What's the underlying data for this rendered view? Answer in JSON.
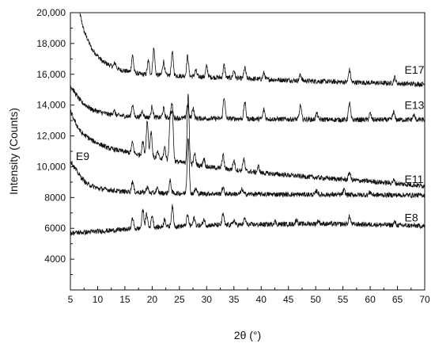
{
  "chart_data": {
    "type": "line",
    "title": "",
    "xlabel": "2θ (°)",
    "ylabel": "Intensity (Counts)",
    "xlim": [
      5,
      70
    ],
    "ylim": [
      2000,
      20000
    ],
    "x_ticks": [
      5,
      10,
      15,
      20,
      25,
      30,
      35,
      40,
      45,
      50,
      55,
      60,
      65,
      70
    ],
    "y_ticks": [
      {
        "value": 4000,
        "label": "4000"
      },
      {
        "value": 6000,
        "label": "6000"
      },
      {
        "value": 8000,
        "label": "8000"
      },
      {
        "value": 10000,
        "label": "10,000"
      },
      {
        "value": 12000,
        "label": "12,000"
      },
      {
        "value": 14000,
        "label": "14,000"
      },
      {
        "value": 16000,
        "label": "16,000"
      },
      {
        "value": 18000,
        "label": "18,000"
      },
      {
        "value": 20000,
        "label": "20,000"
      }
    ],
    "grid": false,
    "series": [
      {
        "name": "E17",
        "label_at": [
          66.3,
          16300
        ],
        "baseline": [
          [
            6.5,
            20300
          ],
          [
            7.5,
            18800
          ],
          [
            9,
            17600
          ],
          [
            11,
            16800
          ],
          [
            14,
            16300
          ],
          [
            18,
            16000
          ],
          [
            25,
            15900
          ],
          [
            35,
            15750
          ],
          [
            50,
            15550
          ],
          [
            60,
            15450
          ],
          [
            70,
            15350
          ]
        ],
        "peaks": [
          [
            13.2,
            300
          ],
          [
            16.4,
            1100
          ],
          [
            19.3,
            900
          ],
          [
            20.3,
            1700
          ],
          [
            22.1,
            900
          ],
          [
            23.7,
            1500
          ],
          [
            26.5,
            1300
          ],
          [
            28.0,
            400
          ],
          [
            30.0,
            700
          ],
          [
            33.2,
            800
          ],
          [
            35.0,
            500
          ],
          [
            37.0,
            700
          ],
          [
            40.5,
            400
          ],
          [
            47.2,
            400
          ],
          [
            56.2,
            800
          ],
          [
            64.5,
            400
          ]
        ]
      },
      {
        "name": "E13",
        "label_at": [
          66.3,
          14000
        ],
        "baseline": [
          [
            5,
            15300
          ],
          [
            6,
            14700
          ],
          [
            7,
            14200
          ],
          [
            9,
            13700
          ],
          [
            12,
            13400
          ],
          [
            16,
            13250
          ],
          [
            25,
            13150
          ],
          [
            40,
            13100
          ],
          [
            55,
            13050
          ],
          [
            70,
            13050
          ]
        ],
        "peaks": [
          [
            13.0,
            300
          ],
          [
            16.4,
            800
          ],
          [
            18.2,
            400
          ],
          [
            20.0,
            700
          ],
          [
            22.1,
            600
          ],
          [
            23.6,
            900
          ],
          [
            26.5,
            900
          ],
          [
            27.5,
            700
          ],
          [
            33.2,
            1400
          ],
          [
            37.0,
            1100
          ],
          [
            40.5,
            600
          ],
          [
            47.2,
            900
          ],
          [
            50.2,
            400
          ],
          [
            56.2,
            1100
          ],
          [
            60.0,
            400
          ],
          [
            64.3,
            500
          ],
          [
            68.0,
            300
          ]
        ]
      },
      {
        "name": "E11",
        "label_at": [
          66.3,
          9200
        ],
        "baseline": [
          [
            5,
            13600
          ],
          [
            6,
            12800
          ],
          [
            7,
            12200
          ],
          [
            9,
            11700
          ],
          [
            12,
            11200
          ],
          [
            16,
            10900
          ],
          [
            20,
            10600
          ],
          [
            30,
            10000
          ],
          [
            40,
            9600
          ],
          [
            50,
            9300
          ],
          [
            60,
            9050
          ],
          [
            70,
            8750
          ]
        ],
        "peaks": [
          [
            16.4,
            700
          ],
          [
            18.3,
            900
          ],
          [
            19.1,
            2300
          ],
          [
            19.8,
            1700
          ],
          [
            21.0,
            400
          ],
          [
            22.3,
            800
          ],
          [
            23.3,
            2700
          ],
          [
            23.7,
            3000
          ],
          [
            26.6,
            4400
          ],
          [
            27.8,
            700
          ],
          [
            29.5,
            500
          ],
          [
            33.0,
            900
          ],
          [
            35.0,
            600
          ],
          [
            36.8,
            800
          ],
          [
            39.5,
            400
          ],
          [
            56.2,
            500
          ],
          [
            64.3,
            200
          ]
        ]
      },
      {
        "name": "E9",
        "label_at": [
          6.0,
          10700
        ],
        "baseline": [
          [
            5,
            10400
          ],
          [
            6,
            9800
          ],
          [
            7,
            9300
          ],
          [
            8,
            8900
          ],
          [
            10,
            8600
          ],
          [
            14,
            8400
          ],
          [
            20,
            8300
          ],
          [
            30,
            8250
          ],
          [
            45,
            8200
          ],
          [
            60,
            8170
          ],
          [
            70,
            8150
          ]
        ],
        "peaks": [
          [
            16.4,
            700
          ],
          [
            19.1,
            400
          ],
          [
            20.9,
            300
          ],
          [
            23.3,
            800
          ],
          [
            26.6,
            3700
          ],
          [
            28.0,
            300
          ],
          [
            33.0,
            400
          ],
          [
            36.5,
            300
          ],
          [
            50.2,
            250
          ],
          [
            55.2,
            300
          ],
          [
            60.0,
            200
          ]
        ]
      },
      {
        "name": "E8",
        "label_at": [
          66.3,
          6700
        ],
        "baseline": [
          [
            5,
            5700
          ],
          [
            8,
            5750
          ],
          [
            12,
            5850
          ],
          [
            16,
            5950
          ],
          [
            22,
            6100
          ],
          [
            30,
            6200
          ],
          [
            40,
            6250
          ],
          [
            50,
            6300
          ],
          [
            60,
            6250
          ],
          [
            70,
            6150
          ]
        ],
        "peaks": [
          [
            16.4,
            700
          ],
          [
            18.3,
            1200
          ],
          [
            19.0,
            900
          ],
          [
            20.0,
            800
          ],
          [
            22.3,
            500
          ],
          [
            23.7,
            1300
          ],
          [
            26.5,
            700
          ],
          [
            27.7,
            500
          ],
          [
            29.5,
            400
          ],
          [
            33.0,
            700
          ],
          [
            35.0,
            300
          ],
          [
            37.0,
            400
          ],
          [
            42.5,
            200
          ],
          [
            46.5,
            300
          ],
          [
            50.5,
            200
          ],
          [
            56.2,
            500
          ],
          [
            64.5,
            200
          ]
        ]
      }
    ]
  }
}
